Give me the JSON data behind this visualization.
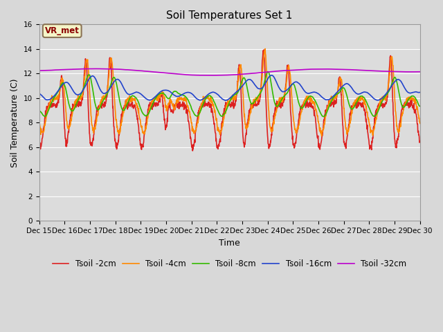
{
  "title": "Soil Temperatures Set 1",
  "xlabel": "Time",
  "ylabel": "Soil Temperature (C)",
  "ylim": [
    0,
    16
  ],
  "yticks": [
    0,
    2,
    4,
    6,
    8,
    10,
    12,
    14,
    16
  ],
  "fig_bg_color": "#d8d8d8",
  "plot_bg_color": "#dcdcdc",
  "annotation_text": "VR_met",
  "annotation_box_color": "#f5f5c8",
  "annotation_box_edge": "#8b7355",
  "series_colors": {
    "Tsoil -2cm": "#dd2020",
    "Tsoil -4cm": "#ff8800",
    "Tsoil -8cm": "#33bb00",
    "Tsoil -16cm": "#2244cc",
    "Tsoil -32cm": "#bb00cc"
  },
  "x_labels": [
    "Dec 15",
    "Dec 16",
    "Dec 17",
    "Dec 18",
    "Dec 19",
    "Dec 20",
    "Dec 21",
    "Dec 22",
    "Dec 23",
    "Dec 24",
    "Dec 25",
    "Dec 26",
    "Dec 27",
    "Dec 28",
    "Dec 29",
    "Dec 30"
  ],
  "line_width": 1.2,
  "grid_color": "#ffffff",
  "tick_fontsize": 7.5,
  "legend_fontsize": 8.5
}
